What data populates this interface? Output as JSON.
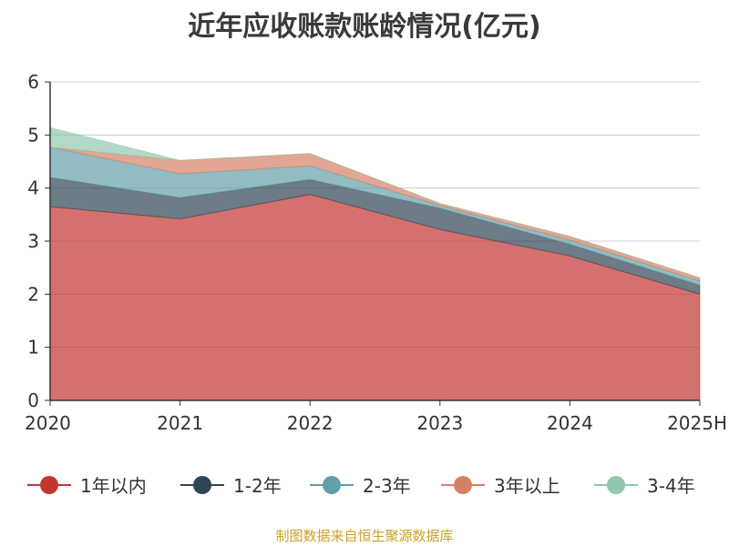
{
  "chart_data": {
    "type": "area",
    "title": "近年应收账款账龄情况(亿元)",
    "ylabel": "",
    "xlabel": "",
    "x": [
      "2020",
      "2021",
      "2022",
      "2023",
      "2024",
      "2025H"
    ],
    "ylim": [
      0,
      6
    ],
    "yticks": [
      "0",
      "1",
      "2",
      "3",
      "4",
      "5",
      "6"
    ],
    "stacked": true,
    "grid": true,
    "legend_position": "bottom",
    "series": [
      {
        "name": "1年以内",
        "color": "#c23531",
        "values": [
          3.65,
          3.42,
          3.88,
          3.22,
          2.72,
          2.0
        ]
      },
      {
        "name": "1-2年",
        "color": "#2f4554",
        "values": [
          0.55,
          0.4,
          0.28,
          0.4,
          0.22,
          0.17
        ]
      },
      {
        "name": "2-3年",
        "color": "#61a0a8",
        "values": [
          0.57,
          0.45,
          0.26,
          0.05,
          0.08,
          0.08
        ]
      },
      {
        "name": "3年以上",
        "color": "#d48265",
        "values": [
          0.0,
          0.25,
          0.23,
          0.04,
          0.07,
          0.06
        ]
      },
      {
        "name": "3-4年",
        "color": "#91c7ae",
        "values": [
          0.37,
          0.0,
          0.0,
          0.0,
          0.0,
          0.0
        ]
      }
    ]
  },
  "source_note": "制图数据来自恒生聚源数据库"
}
